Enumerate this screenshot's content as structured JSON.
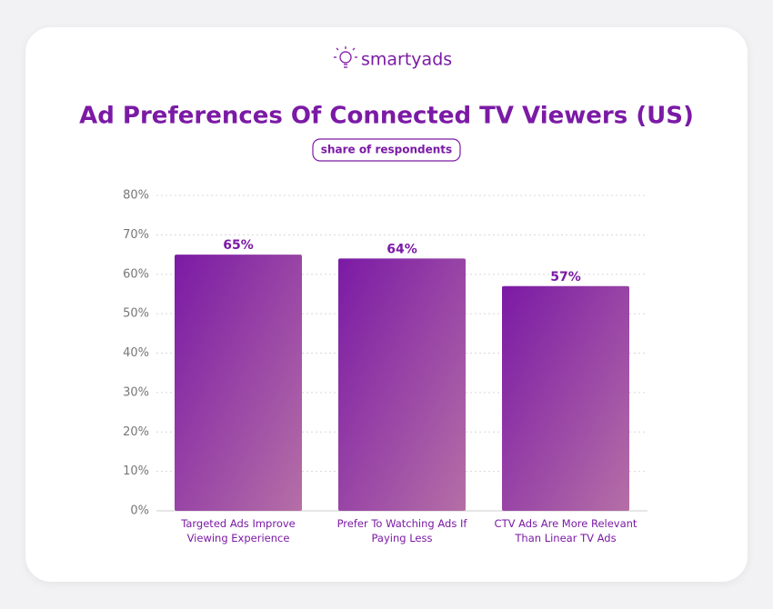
{
  "logo": "smartyads",
  "chart_data": {
    "type": "bar",
    "title": "Ad Preferences Of Connected TV Viewers (US)",
    "subtitle": "share of respondents",
    "categories": [
      "Targeted Ads Improve Viewing Experience",
      "Prefer To Watching Ads If Paying Less",
      "CTV Ads Are More Relevant Than Linear TV Ads"
    ],
    "values": [
      65,
      64,
      57
    ],
    "value_labels": [
      "65%",
      "64%",
      "57%"
    ],
    "color": "#7b1aa5",
    "ylim": [
      0,
      80
    ],
    "yticks": [
      {
        "value": 0,
        "label": "0%"
      },
      {
        "value": 10,
        "label": "10%"
      },
      {
        "value": 20,
        "label": "20%"
      },
      {
        "value": 30,
        "label": "30%"
      },
      {
        "value": 40,
        "label": "40%"
      },
      {
        "value": 50,
        "label": "50%"
      },
      {
        "value": 60,
        "label": "60%"
      },
      {
        "value": 70,
        "label": "70%"
      },
      {
        "value": 80,
        "label": "80%"
      }
    ],
    "grid": true
  }
}
